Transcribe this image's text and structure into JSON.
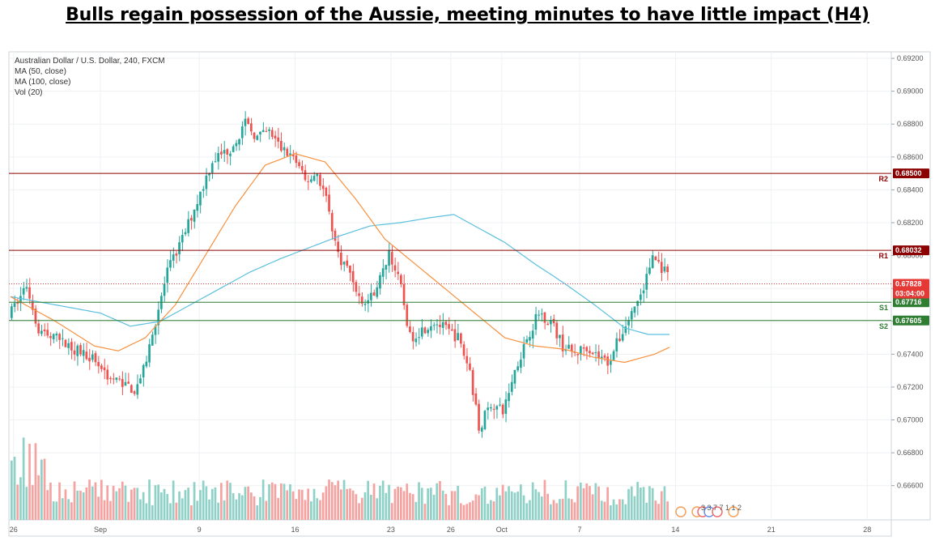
{
  "headline": "Bulls regain possession of the Aussie, meeting minutes to have little impact (H4)",
  "legend": {
    "symbol": "Australian Dollar / U.S. Dollar, 240, FXCM",
    "ma50": "MA (50, close)",
    "ma100": "MA (100, close)",
    "vol": "Vol (20)"
  },
  "colors": {
    "bull": "#26a69a",
    "bear": "#ef5350",
    "bull_vol": "#8fd1c7",
    "bear_vol": "#f5a3a1",
    "ma50": "#f7913f",
    "ma100": "#5bc0de",
    "resistance": "#8b0000",
    "support": "#2e7d32",
    "current": "#e53935"
  },
  "chart_data": {
    "type": "candlestick",
    "y_ticks": [
      "0.69200",
      "0.69000",
      "0.68800",
      "0.68600",
      "0.68400",
      "0.68200",
      "0.68000",
      "0.67800",
      "0.67600",
      "0.67400",
      "0.67200",
      "0.67000",
      "0.66800",
      "0.66600"
    ],
    "x_ticks": [
      "26",
      "Sep",
      "9",
      "16",
      "23",
      "26",
      "Oct",
      "7",
      "14",
      "21",
      "28"
    ],
    "ylim": [
      0.665,
      0.6922
    ],
    "levels": [
      {
        "name": "R2",
        "value": 0.685,
        "label": "0.68500",
        "kind": "resistance"
      },
      {
        "name": "R1",
        "value": 0.68032,
        "label": "0.68032",
        "kind": "resistance"
      },
      {
        "name": "S1",
        "value": 0.67716,
        "label": "0.67716",
        "kind": "support"
      },
      {
        "name": "S2",
        "value": 0.67605,
        "label": "0.67605",
        "kind": "support"
      }
    ],
    "current_price": {
      "value": 0.67828,
      "label": "0.67828",
      "countdown": "03:04:00"
    },
    "events_label": "3 3 7 7 1 1 2",
    "close_path": [
      [
        0,
        0.6763
      ],
      [
        6,
        0.6782
      ],
      [
        10,
        0.6755
      ],
      [
        20,
        0.6745
      ],
      [
        28,
        0.6738
      ],
      [
        34,
        0.6725
      ],
      [
        38,
        0.6723
      ],
      [
        42,
        0.6718
      ],
      [
        45,
        0.673
      ],
      [
        49,
        0.676
      ],
      [
        53,
        0.679
      ],
      [
        58,
        0.681
      ],
      [
        64,
        0.6838
      ],
      [
        68,
        0.6858
      ],
      [
        74,
        0.6865
      ],
      [
        79,
        0.688
      ],
      [
        83,
        0.6872
      ],
      [
        87,
        0.6875
      ],
      [
        91,
        0.6865
      ],
      [
        95,
        0.686
      ],
      [
        99,
        0.6845
      ],
      [
        103,
        0.685
      ],
      [
        106,
        0.6835
      ],
      [
        110,
        0.68
      ],
      [
        114,
        0.679
      ],
      [
        118,
        0.677
      ],
      [
        121,
        0.6775
      ],
      [
        125,
        0.679
      ],
      [
        127,
        0.6803
      ],
      [
        131,
        0.678
      ],
      [
        134,
        0.675
      ],
      [
        138,
        0.6755
      ],
      [
        142,
        0.676
      ],
      [
        146,
        0.6755
      ],
      [
        150,
        0.675
      ],
      [
        154,
        0.673
      ],
      [
        157,
        0.6695
      ],
      [
        161,
        0.671
      ],
      [
        165,
        0.6705
      ],
      [
        169,
        0.673
      ],
      [
        173,
        0.675
      ],
      [
        177,
        0.6765
      ],
      [
        181,
        0.676
      ],
      [
        185,
        0.6745
      ],
      [
        189,
        0.674
      ],
      [
        193,
        0.6745
      ],
      [
        196,
        0.674
      ],
      [
        200,
        0.6735
      ],
      [
        204,
        0.675
      ],
      [
        208,
        0.6765
      ],
      [
        212,
        0.678
      ],
      [
        215,
        0.68
      ],
      [
        219,
        0.679
      ],
      [
        221,
        0.6783
      ]
    ],
    "ma50_path": [
      [
        0,
        0.6775
      ],
      [
        15,
        0.676
      ],
      [
        28,
        0.6745
      ],
      [
        36,
        0.6742
      ],
      [
        45,
        0.675
      ],
      [
        55,
        0.677
      ],
      [
        65,
        0.68
      ],
      [
        75,
        0.683
      ],
      [
        85,
        0.6855
      ],
      [
        95,
        0.6862
      ],
      [
        105,
        0.6857
      ],
      [
        115,
        0.6835
      ],
      [
        125,
        0.681
      ],
      [
        135,
        0.6795
      ],
      [
        145,
        0.678
      ],
      [
        155,
        0.6765
      ],
      [
        165,
        0.675
      ],
      [
        175,
        0.6745
      ],
      [
        185,
        0.6743
      ],
      [
        195,
        0.6738
      ],
      [
        205,
        0.6735
      ],
      [
        215,
        0.674
      ],
      [
        221,
        0.6745
      ]
    ],
    "ma100_path": [
      [
        0,
        0.6775
      ],
      [
        15,
        0.677
      ],
      [
        30,
        0.6765
      ],
      [
        40,
        0.6757
      ],
      [
        50,
        0.676
      ],
      [
        60,
        0.677
      ],
      [
        70,
        0.678
      ],
      [
        80,
        0.679
      ],
      [
        90,
        0.6798
      ],
      [
        100,
        0.6805
      ],
      [
        110,
        0.6812
      ],
      [
        120,
        0.6818
      ],
      [
        130,
        0.682
      ],
      [
        140,
        0.6823
      ],
      [
        148,
        0.6825
      ],
      [
        155,
        0.6818
      ],
      [
        165,
        0.6808
      ],
      [
        175,
        0.6795
      ],
      [
        185,
        0.6783
      ],
      [
        195,
        0.677
      ],
      [
        205,
        0.6756
      ],
      [
        213,
        0.6752
      ],
      [
        221,
        0.6752
      ]
    ],
    "x_tick_bars": [
      1,
      30,
      63,
      95,
      127,
      147,
      164,
      190,
      222,
      254,
      286
    ],
    "total_bars": 300
  }
}
